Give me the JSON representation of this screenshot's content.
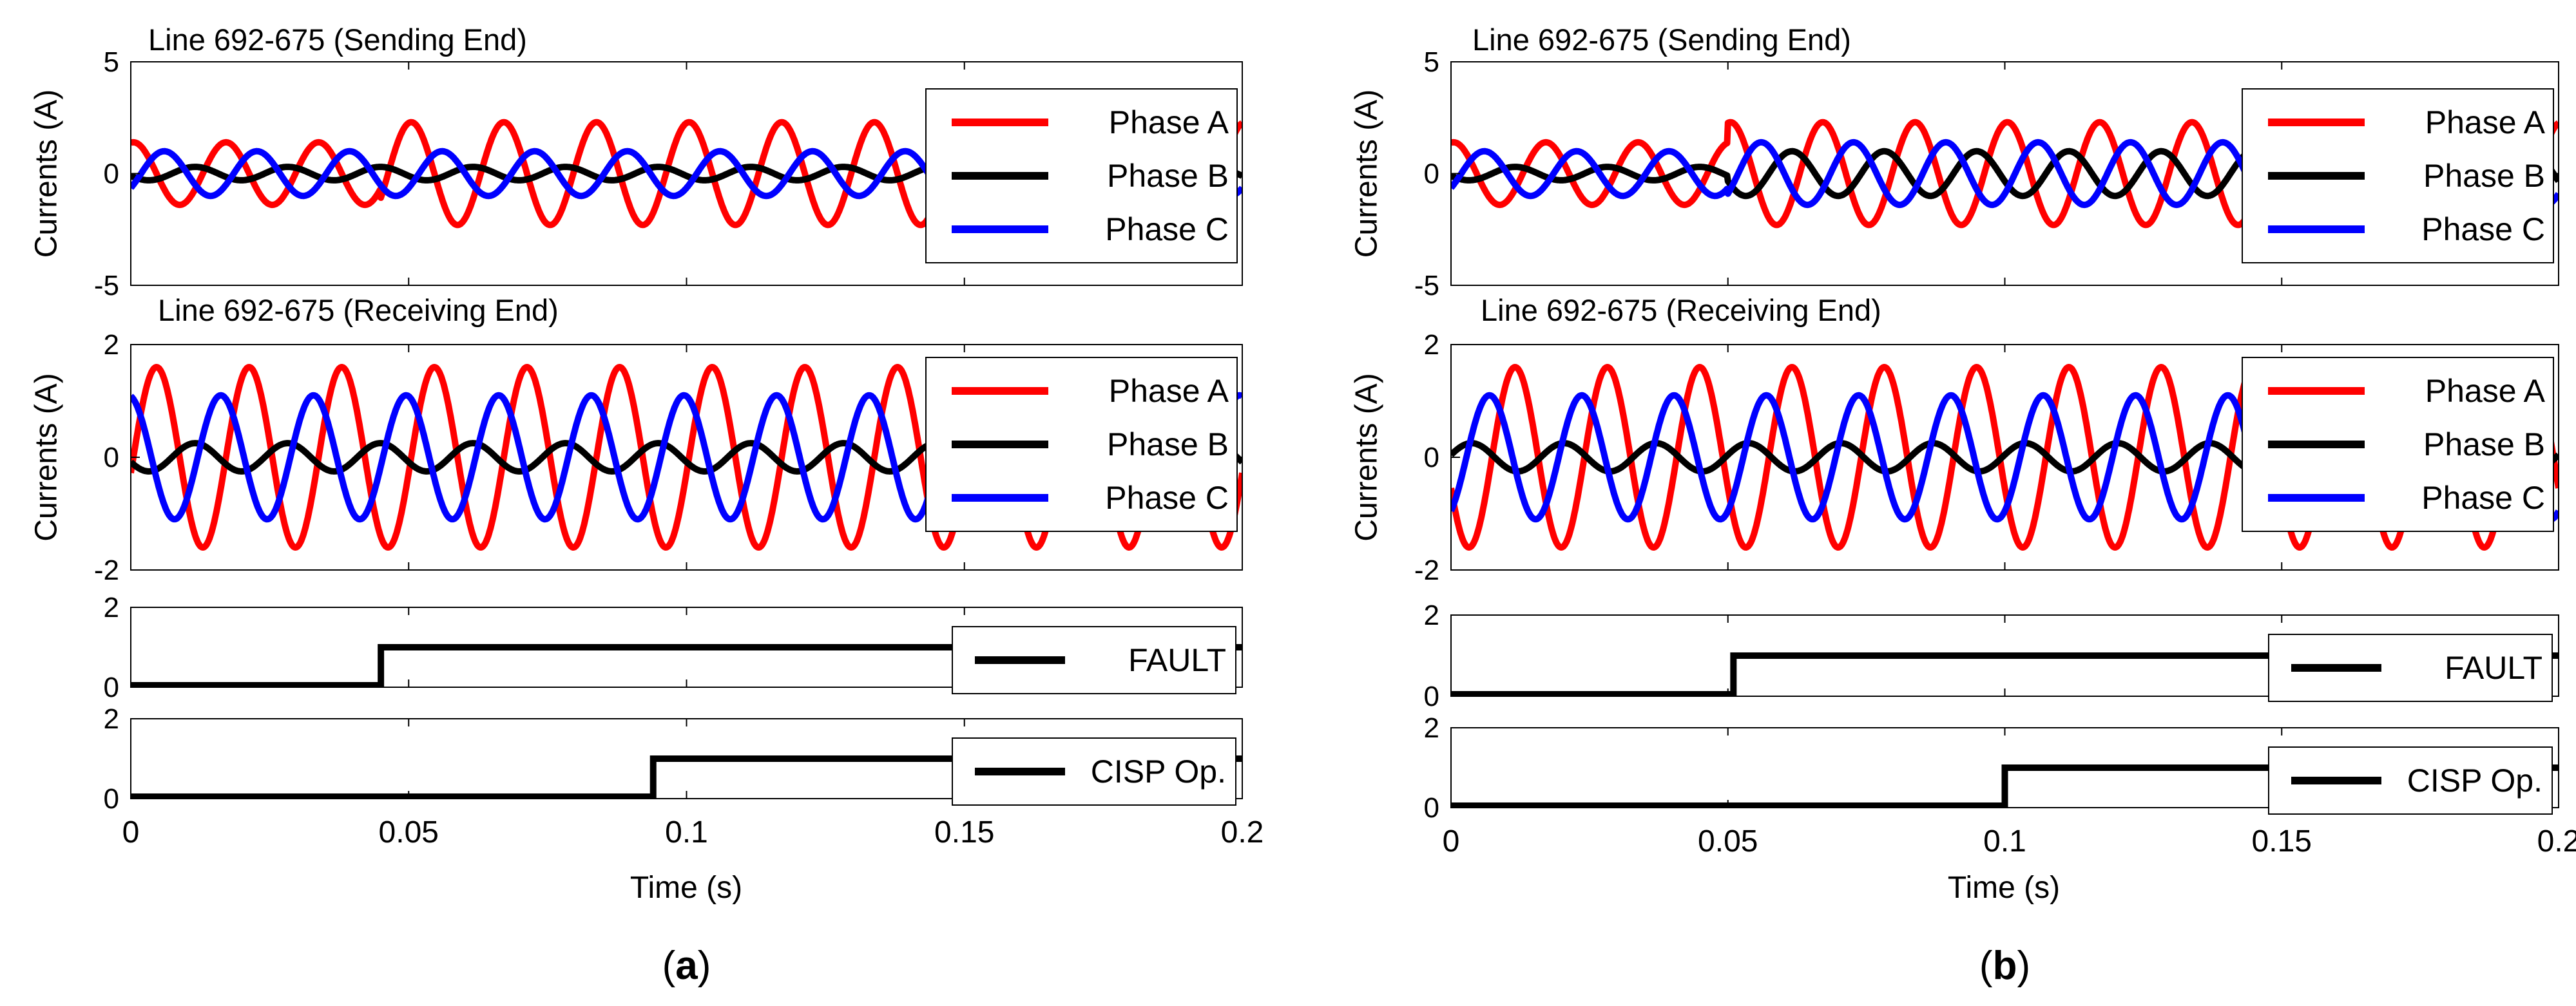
{
  "chart_data": [
    {
      "type": "line",
      "panel_label": "a",
      "xlabel": "Time (s)",
      "xlim": [
        0,
        0.2
      ],
      "xticks": [
        0,
        0.05,
        0.1,
        0.15,
        0.2
      ],
      "xtick_labels": [
        "0",
        "0.05",
        "0.1",
        "0.15",
        "0.2"
      ],
      "subplots": [
        {
          "kind": "sine",
          "title": "Line 692-675 (Sending End)",
          "ylabel": "Currents (A)",
          "ylim": [
            -5,
            5
          ],
          "yticks": [
            5,
            0,
            -5
          ],
          "ytick_labels": [
            "5",
            "0",
            "-5"
          ],
          "legend_position": "right",
          "frequency_hz": 60,
          "series": [
            {
              "name": "Phase A",
              "color": "#ff0000",
              "amplitude_pre": 1.4,
              "amplitude_post": 2.3,
              "change_time": 0.045,
              "phase_deg": 80
            },
            {
              "name": "Phase B",
              "color": "#000000",
              "amplitude_pre": 0.3,
              "amplitude_post": 0.3,
              "change_time": 0.045,
              "phase_deg": 200
            },
            {
              "name": "Phase C",
              "color": "#0000ff",
              "amplitude_pre": 1.0,
              "amplitude_post": 1.0,
              "change_time": 0.045,
              "phase_deg": -40
            }
          ]
        },
        {
          "kind": "sine",
          "title": "Line 692-675 (Receiving End)",
          "ylabel": "Currents (A)",
          "ylim": [
            -2,
            2
          ],
          "yticks": [
            2,
            0,
            -2
          ],
          "ytick_labels": [
            "2",
            "0",
            "-2"
          ],
          "legend_position": "right",
          "frequency_hz": 60,
          "series": [
            {
              "name": "Phase A",
              "color": "#ff0000",
              "amplitude_pre": 1.6,
              "amplitude_post": 1.6,
              "change_time": 0.045,
              "phase_deg": -10
            },
            {
              "name": "Phase B",
              "color": "#000000",
              "amplitude_pre": 0.25,
              "amplitude_post": 0.25,
              "change_time": 0.045,
              "phase_deg": 200
            },
            {
              "name": "Phase C",
              "color": "#0000ff",
              "amplitude_pre": 1.1,
              "amplitude_post": 1.1,
              "change_time": 0.045,
              "phase_deg": 100
            }
          ]
        },
        {
          "kind": "step",
          "title": "",
          "ylim": [
            0,
            2
          ],
          "yticks": [
            2,
            0
          ],
          "ytick_labels": [
            "2",
            "0"
          ],
          "legend_position": "top-right",
          "series": [
            {
              "name": "FAULT",
              "color": "#000000",
              "low": 0,
              "high": 1,
              "step_time": 0.045
            }
          ]
        },
        {
          "kind": "step",
          "title": "",
          "ylim": [
            0,
            2
          ],
          "yticks": [
            2,
            0
          ],
          "ytick_labels": [
            "2",
            "0"
          ],
          "legend_position": "top-right",
          "series": [
            {
              "name": "CISP Op.",
              "color": "#000000",
              "low": 0,
              "high": 1,
              "step_time": 0.094
            }
          ]
        }
      ]
    },
    {
      "type": "line",
      "panel_label": "b",
      "xlabel": "Time (s)",
      "xlim": [
        0,
        0.2
      ],
      "xticks": [
        0,
        0.05,
        0.1,
        0.15,
        0.2
      ],
      "xtick_labels": [
        "0",
        "0.05",
        "0.1",
        "0.15",
        "0.2"
      ],
      "subplots": [
        {
          "kind": "sine",
          "title": "Line 692-675 (Sending End)",
          "ylabel": "Currents (A)",
          "ylim": [
            -5,
            5
          ],
          "yticks": [
            5,
            0,
            -5
          ],
          "ytick_labels": [
            "5",
            "0",
            "-5"
          ],
          "legend_position": "right",
          "frequency_hz": 60,
          "series": [
            {
              "name": "Phase A",
              "color": "#ff0000",
              "amplitude_pre": 1.4,
              "amplitude_post": 2.3,
              "change_time": 0.05,
              "phase_deg": 80
            },
            {
              "name": "Phase B",
              "color": "#000000",
              "amplitude_pre": 0.3,
              "amplitude_post": 1.0,
              "change_time": 0.05,
              "phase_deg": 200
            },
            {
              "name": "Phase C",
              "color": "#0000ff",
              "amplitude_pre": 1.0,
              "amplitude_post": 1.4,
              "change_time": 0.05,
              "phase_deg": -40
            }
          ]
        },
        {
          "kind": "sine",
          "title": "Line 692-675 (Receiving End)",
          "ylabel": "Currents (A)",
          "ylim": [
            -2,
            2
          ],
          "yticks": [
            2,
            0,
            -2
          ],
          "ytick_labels": [
            "2",
            "0",
            "-2"
          ],
          "legend_position": "right",
          "frequency_hz": 60,
          "series": [
            {
              "name": "Phase A",
              "color": "#ff0000",
              "amplitude_pre": 1.6,
              "amplitude_post": 1.6,
              "change_time": 0.05,
              "phase_deg": -160
            },
            {
              "name": "Phase B",
              "color": "#000000",
              "amplitude_pre": 0.25,
              "amplitude_post": 0.25,
              "change_time": 0.05,
              "phase_deg": 10
            },
            {
              "name": "Phase C",
              "color": "#0000ff",
              "amplitude_pre": 1.1,
              "amplitude_post": 1.1,
              "change_time": 0.05,
              "phase_deg": -60
            }
          ]
        },
        {
          "kind": "step",
          "title": "",
          "ylim": [
            0,
            2
          ],
          "yticks": [
            2,
            0
          ],
          "ytick_labels": [
            "2",
            "0"
          ],
          "legend_position": "top-right",
          "series": [
            {
              "name": "FAULT",
              "color": "#000000",
              "low": 0,
              "high": 1,
              "step_time": 0.051
            }
          ]
        },
        {
          "kind": "step",
          "title": "",
          "ylim": [
            0,
            2
          ],
          "yticks": [
            2,
            0
          ],
          "ytick_labels": [
            "2",
            "0"
          ],
          "legend_position": "top-right",
          "series": [
            {
              "name": "CISP Op.",
              "color": "#000000",
              "low": 0,
              "high": 1,
              "step_time": 0.1
            }
          ]
        }
      ]
    }
  ]
}
